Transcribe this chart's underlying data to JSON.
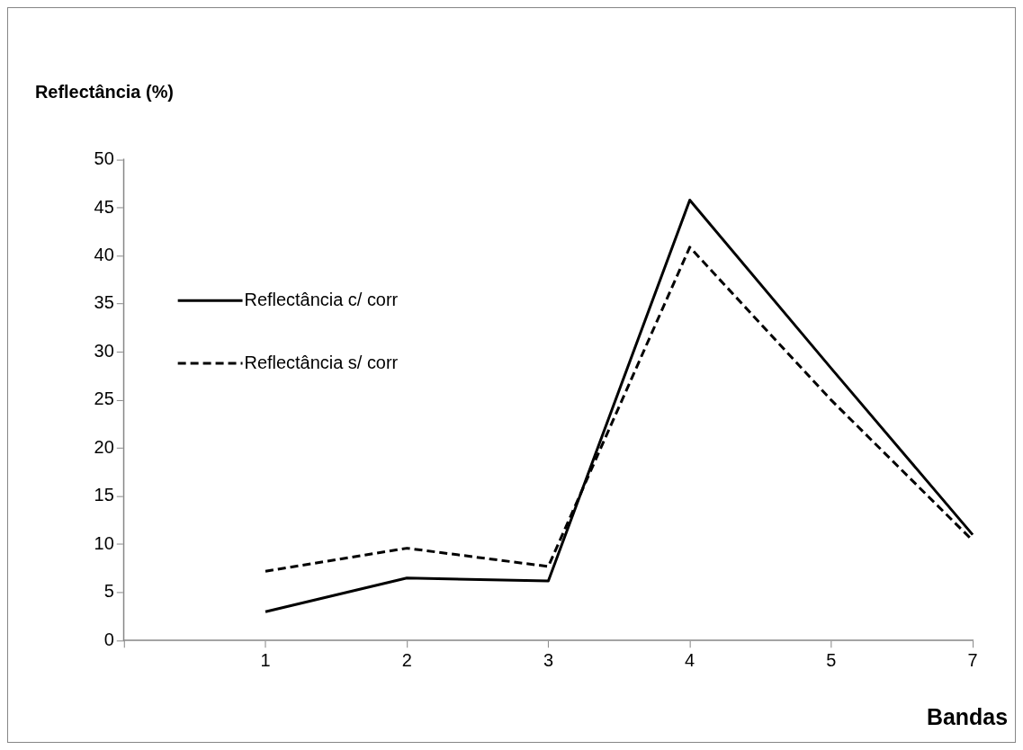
{
  "chart_data": {
    "type": "line",
    "xlabel": "Bandas",
    "ylabel": "Reflectância (%)",
    "categories": [
      null,
      "1",
      "2",
      "3",
      "4",
      "5",
      "7"
    ],
    "series": [
      {
        "name": "Reflectância c/ corr",
        "color": "#000000",
        "line_style": "solid",
        "values": [
          null,
          3.0,
          6.5,
          6.2,
          45.8,
          28.3,
          11.0
        ]
      },
      {
        "name": "Reflectância s/ corr",
        "color": "#000000",
        "line_style": "dashed",
        "values": [
          null,
          7.2,
          9.6,
          7.7,
          40.9,
          25.0,
          10.4
        ]
      }
    ],
    "ylim": [
      0,
      50
    ],
    "yticks": [
      0,
      5,
      10,
      15,
      20,
      25,
      30,
      35,
      40,
      45,
      50
    ],
    "grid": false,
    "legend": "left",
    "marker": "none"
  }
}
